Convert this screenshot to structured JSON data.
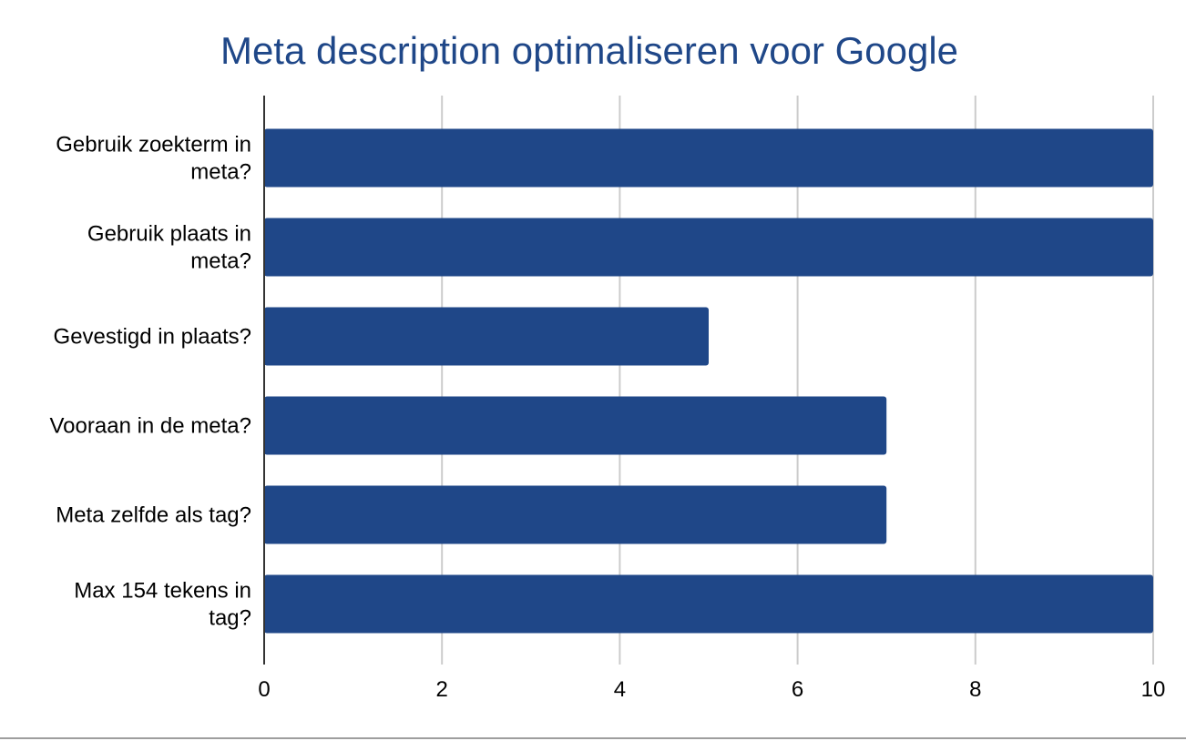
{
  "chart_data": {
    "type": "bar",
    "orientation": "horizontal",
    "title": "Meta description optimaliseren voor Google",
    "categories": [
      [
        "Gebruik zoekterm in",
        "meta?"
      ],
      [
        "Gebruik plaats in",
        "meta?"
      ],
      [
        "Gevestigd in plaats?"
      ],
      [
        "Vooraan in de meta?"
      ],
      [
        "Meta zelfde als tag?"
      ],
      [
        "Max 154 tekens in",
        "tag?"
      ]
    ],
    "values": [
      10,
      10,
      5,
      7,
      7,
      10
    ],
    "xlim": [
      0,
      10
    ],
    "xticks": [
      "0",
      "2",
      "4",
      "6",
      "8",
      "10"
    ],
    "xtick_values": [
      0,
      2,
      4,
      6,
      8,
      10
    ],
    "grid": true,
    "bar_color": "#1f4788",
    "title_color": "#1f4788",
    "grid_color": "#cccccc"
  }
}
